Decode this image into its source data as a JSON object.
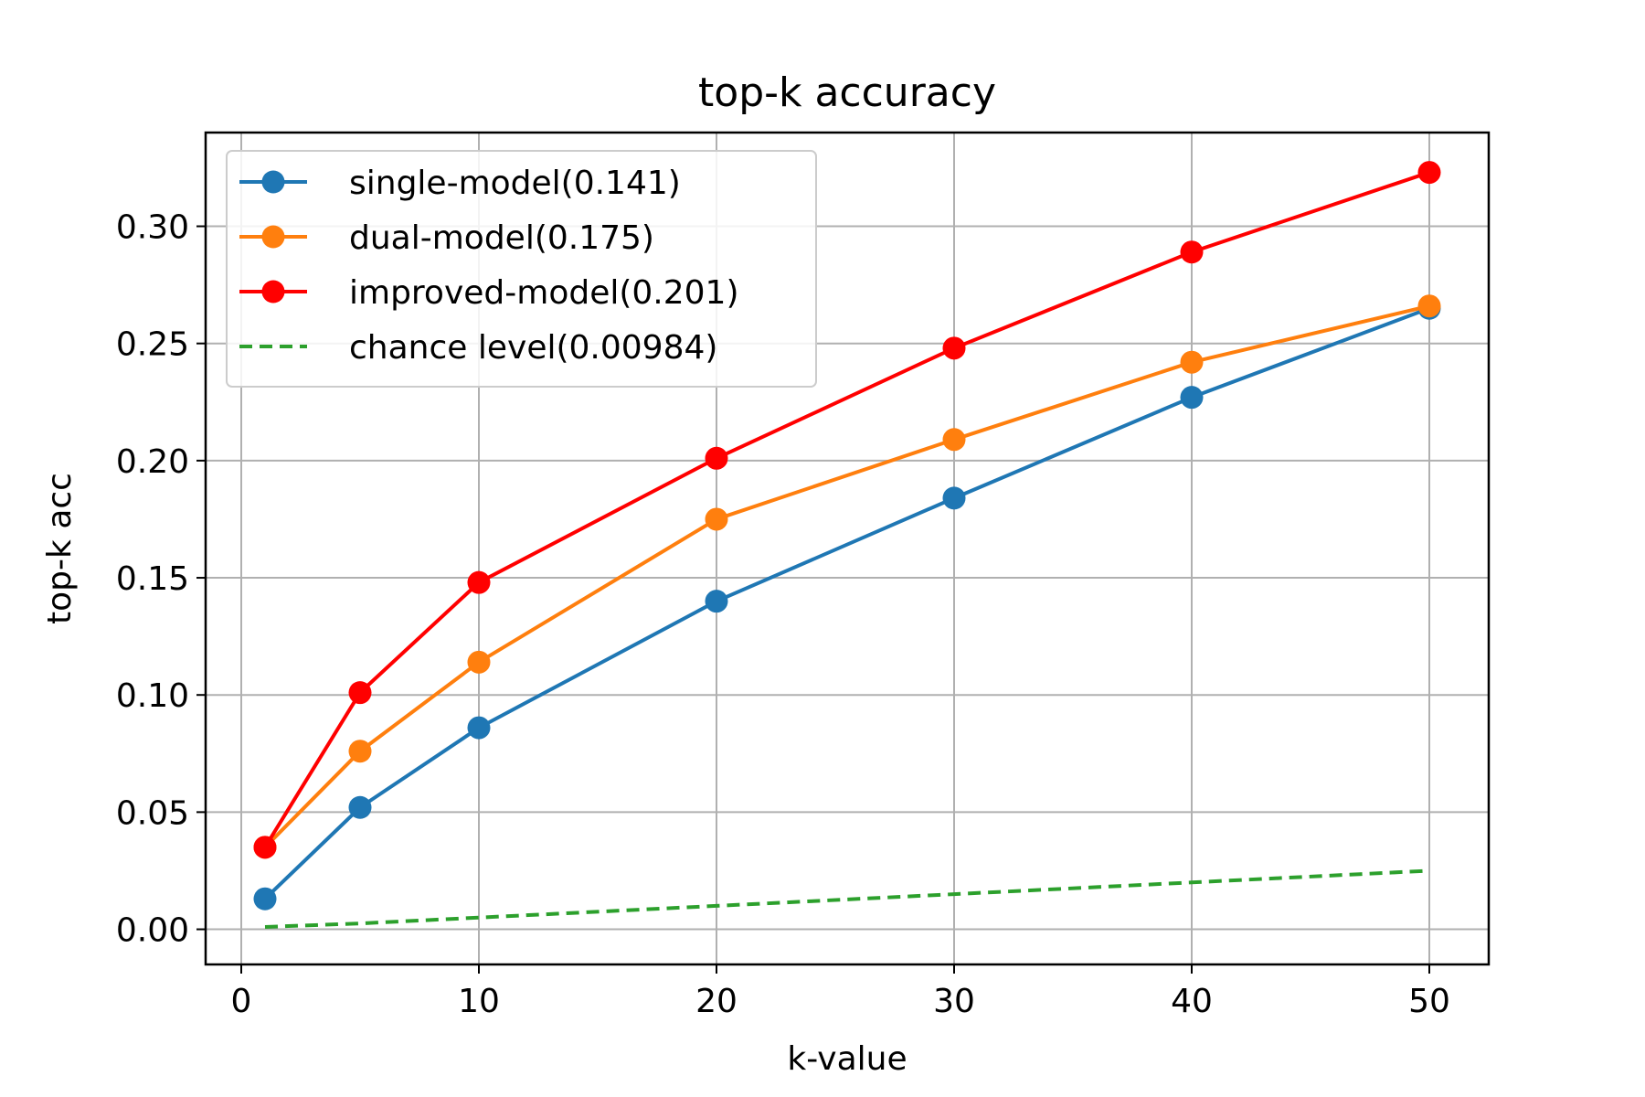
{
  "chart_data": {
    "type": "line",
    "title": "top-k accuracy",
    "xlabel": "k-value",
    "ylabel": "top-k acc",
    "xlim": [
      -1.5,
      52.5
    ],
    "ylim": [
      -0.015,
      0.34
    ],
    "xticks": [
      0,
      10,
      20,
      30,
      40,
      50
    ],
    "xtick_labels": [
      "0",
      "10",
      "20",
      "30",
      "40",
      "50"
    ],
    "yticks": [
      0.0,
      0.05,
      0.1,
      0.15,
      0.2,
      0.25,
      0.3
    ],
    "ytick_labels": [
      "0.00",
      "0.05",
      "0.10",
      "0.15",
      "0.20",
      "0.25",
      "0.30"
    ],
    "grid": true,
    "legend_position": "top-left",
    "x": [
      1,
      5,
      10,
      20,
      30,
      40,
      50
    ],
    "series": [
      {
        "name": "single-model(0.141)",
        "color": "#1f77b4",
        "style": "solid-marker",
        "values": [
          0.013,
          0.052,
          0.086,
          0.14,
          0.184,
          0.227,
          0.265
        ]
      },
      {
        "name": "dual-model(0.175)",
        "color": "#ff7f0e",
        "style": "solid-marker",
        "values": [
          0.035,
          0.076,
          0.114,
          0.175,
          0.209,
          0.242,
          0.266
        ]
      },
      {
        "name": "improved-model(0.201)",
        "color": "#ff0000",
        "style": "solid-marker",
        "values": [
          0.035,
          0.101,
          0.148,
          0.201,
          0.248,
          0.289,
          0.323
        ]
      },
      {
        "name": "chance level(0.00984)",
        "color": "#2ca02c",
        "style": "dashed",
        "values": [
          0.001,
          0.0025,
          0.005,
          0.01,
          0.015,
          0.02,
          0.025
        ]
      }
    ]
  }
}
